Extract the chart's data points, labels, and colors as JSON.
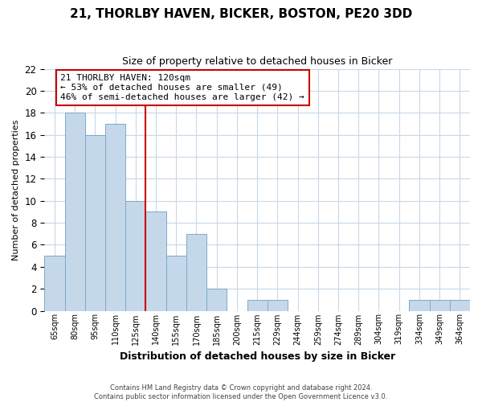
{
  "title": "21, THORLBY HAVEN, BICKER, BOSTON, PE20 3DD",
  "subtitle": "Size of property relative to detached houses in Bicker",
  "xlabel": "Distribution of detached houses by size in Bicker",
  "ylabel": "Number of detached properties",
  "bar_labels": [
    "65sqm",
    "80sqm",
    "95sqm",
    "110sqm",
    "125sqm",
    "140sqm",
    "155sqm",
    "170sqm",
    "185sqm",
    "200sqm",
    "215sqm",
    "229sqm",
    "244sqm",
    "259sqm",
    "274sqm",
    "289sqm",
    "304sqm",
    "319sqm",
    "334sqm",
    "349sqm",
    "364sqm"
  ],
  "bar_values": [
    5,
    18,
    16,
    17,
    10,
    9,
    5,
    7,
    2,
    0,
    1,
    1,
    0,
    0,
    0,
    0,
    0,
    0,
    1,
    1,
    1
  ],
  "bar_color": "#c5d8ea",
  "bar_edge_color": "#7aaac8",
  "vline_color": "#cc0000",
  "annotation_text": "21 THORLBY HAVEN: 120sqm\n← 53% of detached houses are smaller (49)\n46% of semi-detached houses are larger (42) →",
  "annotation_box_color": "#ffffff",
  "annotation_box_edge": "#cc0000",
  "ylim": [
    0,
    22
  ],
  "yticks": [
    0,
    2,
    4,
    6,
    8,
    10,
    12,
    14,
    16,
    18,
    20,
    22
  ],
  "footer_line1": "Contains HM Land Registry data © Crown copyright and database right 2024.",
  "footer_line2": "Contains public sector information licensed under the Open Government Licence v3.0.",
  "background_color": "#ffffff",
  "grid_color": "#c8d8e8",
  "vline_index": 4
}
